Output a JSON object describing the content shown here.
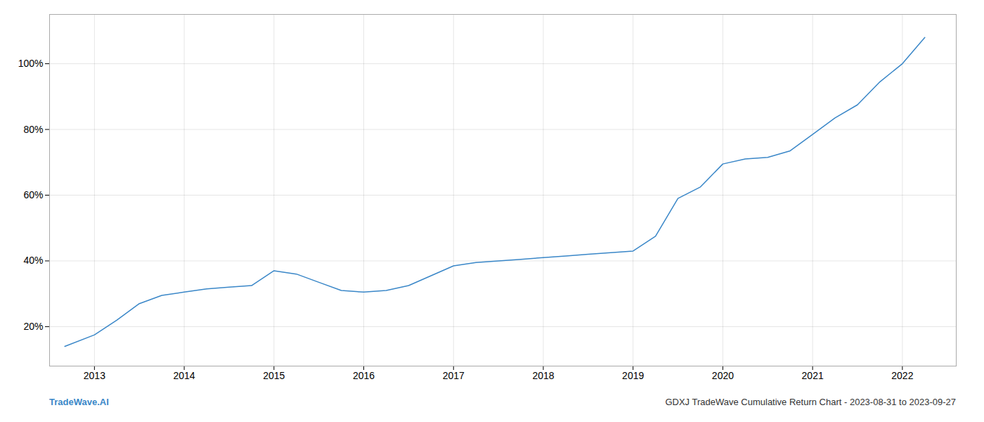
{
  "chart_data": {
    "type": "line",
    "x": [
      2012.67,
      2013.0,
      2013.25,
      2013.5,
      2013.75,
      2014.0,
      2014.25,
      2014.5,
      2014.75,
      2015.0,
      2015.25,
      2015.5,
      2015.75,
      2016.0,
      2016.25,
      2016.5,
      2016.75,
      2017.0,
      2017.25,
      2017.5,
      2017.75,
      2018.0,
      2018.25,
      2018.5,
      2018.75,
      2019.0,
      2019.25,
      2019.5,
      2019.75,
      2020.0,
      2020.25,
      2020.5,
      2020.75,
      2021.0,
      2021.25,
      2021.5,
      2021.75,
      2022.0,
      2022.25
    ],
    "values": [
      0.14,
      0.175,
      0.22,
      0.27,
      0.295,
      0.305,
      0.315,
      0.32,
      0.325,
      0.37,
      0.36,
      0.335,
      0.31,
      0.305,
      0.31,
      0.325,
      0.355,
      0.385,
      0.395,
      0.4,
      0.405,
      0.41,
      0.415,
      0.42,
      0.425,
      0.43,
      0.475,
      0.59,
      0.625,
      0.695,
      0.71,
      0.715,
      0.735,
      0.785,
      0.835,
      0.875,
      0.945,
      1.0,
      1.08
    ],
    "color": "#3a87c8",
    "xlim": [
      2012.5,
      2022.6
    ],
    "xticks": [
      2013,
      2014,
      2015,
      2016,
      2017,
      2018,
      2019,
      2020,
      2021,
      2022
    ],
    "ylim": [
      0.08,
      1.15
    ],
    "yticks": [
      {
        "value": 0.2,
        "label": "20%"
      },
      {
        "value": 0.4,
        "label": "40%"
      },
      {
        "value": 0.6,
        "label": "60%"
      },
      {
        "value": 0.8,
        "label": "80%"
      },
      {
        "value": 1.0,
        "label": "100%"
      }
    ],
    "grid": true,
    "annotations": [
      "TradeWave.AI",
      "GDXJ TradeWave Cumulative Return Chart - 2023-08-31 to 2023-09-27"
    ]
  }
}
